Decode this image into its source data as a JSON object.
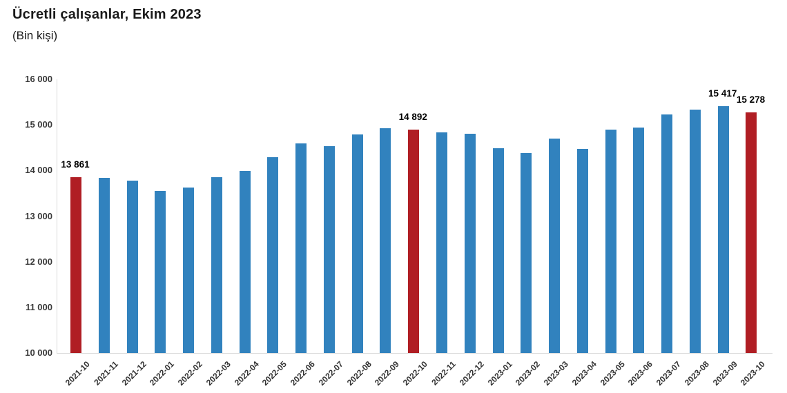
{
  "header": {
    "title": "Ücretli çalışanlar, Ekim 2023",
    "subtitle": "(Bin kişi)"
  },
  "colors": {
    "bar_default": "#3182be",
    "bar_highlight": "#b01e24",
    "axis_line": "#d9d9d9",
    "tick_text": "#3a3a3a",
    "label_text": "#000000"
  },
  "chart_data": {
    "type": "bar",
    "title": "Ücretli çalışanlar, Ekim 2023",
    "subtitle": "(Bin kişi)",
    "xlabel": "",
    "ylabel": "",
    "ylim": [
      10000,
      16000
    ],
    "grid": false,
    "legend": false,
    "categories": [
      "2021-10",
      "2021-11",
      "2021-12",
      "2022-01",
      "2022-02",
      "2022-03",
      "2022-04",
      "2022-05",
      "2022-06",
      "2022-07",
      "2022-08",
      "2022-09",
      "2022-10",
      "2022-11",
      "2022-12",
      "2023-01",
      "2023-02",
      "2023-03",
      "2023-04",
      "2023-05",
      "2023-06",
      "2023-07",
      "2023-08",
      "2023-09",
      "2023-10"
    ],
    "values": [
      13861,
      13840,
      13780,
      13550,
      13630,
      13850,
      13990,
      14290,
      14600,
      14530,
      14790,
      14930,
      14892,
      14830,
      14800,
      14490,
      14380,
      14700,
      14480,
      14890,
      14940,
      15230,
      15340,
      15417,
      15278
    ],
    "highlighted_categories": [
      "2021-10",
      "2022-10",
      "2023-10"
    ],
    "data_labels": {
      "2021-10": "13 861",
      "2022-10": "14 892",
      "2023-09": "15 417",
      "2023-10": "15 278"
    },
    "yticks": [
      {
        "value": 10000,
        "label": "10 000"
      },
      {
        "value": 11000,
        "label": "11 000"
      },
      {
        "value": 12000,
        "label": "12 000"
      },
      {
        "value": 13000,
        "label": "13 000"
      },
      {
        "value": 14000,
        "label": "14 000"
      },
      {
        "value": 15000,
        "label": "15 000"
      },
      {
        "value": 16000,
        "label": "16 000"
      }
    ]
  }
}
